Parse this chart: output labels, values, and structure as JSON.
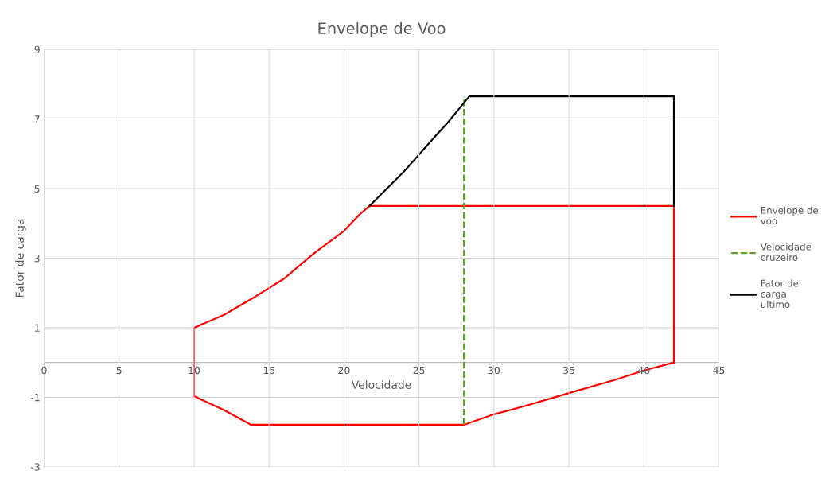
{
  "chart_data": {
    "type": "line",
    "title": "Envelope de Voo",
    "xlabel": "Velocidade",
    "ylabel": "Fator de carga",
    "xlim": [
      0,
      45
    ],
    "xticks": [
      0,
      5,
      10,
      15,
      20,
      25,
      30,
      35,
      40,
      45
    ],
    "ylim": [
      -3,
      9
    ],
    "yticks": [
      -3,
      -1,
      1,
      3,
      5,
      7,
      9
    ],
    "grid": true,
    "legend": "right",
    "marker": "none",
    "series": [
      {
        "name": "Envelope de voo",
        "color": "#ff0000",
        "line_style": "solid",
        "x": [
          10,
          10,
          12,
          13.8,
          16,
          18,
          20,
          21,
          21.7,
          42,
          42
        ],
        "values": [
          -0.97,
          1,
          1.37,
          1.82,
          2.41,
          3.14,
          3.78,
          4.24,
          4.5,
          4.5,
          0
        ]
      },
      {
        "color": "#ff0000",
        "line_style": "solid",
        "x": [
          10,
          12,
          13.8,
          28,
          30,
          32,
          35,
          38,
          40,
          42
        ],
        "values": [
          -0.97,
          -1.37,
          -1.79,
          -1.79,
          -1.49,
          -1.26,
          -0.88,
          -0.51,
          -0.23,
          0
        ]
      },
      {
        "name": "Velocidade cruzeiro",
        "color": "#5aa02c",
        "line_style": "dashed",
        "x": [
          28,
          28
        ],
        "values": [
          -1.79,
          7.65
        ]
      },
      {
        "name": "Fator de carga ultimo",
        "color": "#000000",
        "line_style": "solid",
        "x": [
          21.7,
          24,
          25.9,
          27,
          28.35,
          42,
          42
        ],
        "values": [
          4.5,
          5.49,
          6.41,
          6.94,
          7.65,
          7.65,
          4.5
        ]
      }
    ]
  }
}
